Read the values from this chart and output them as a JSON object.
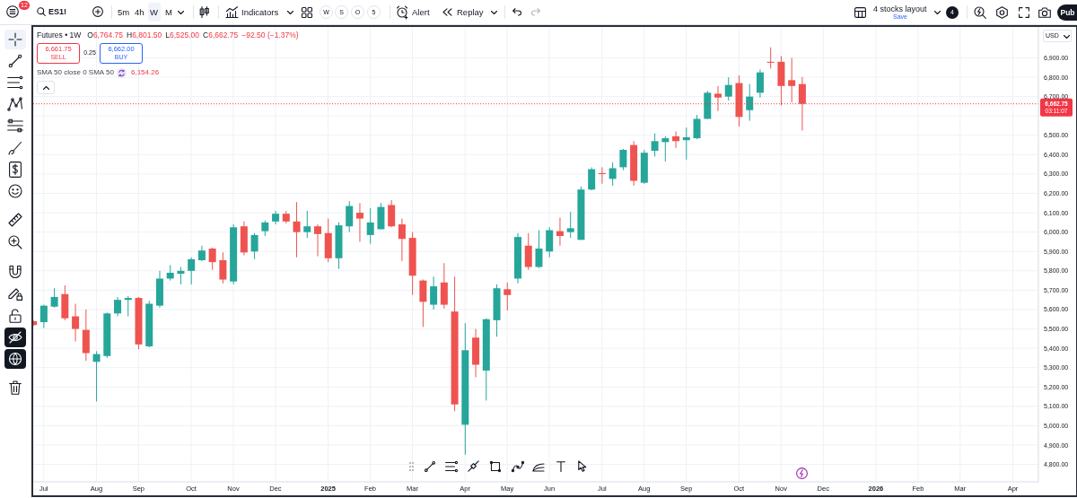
{
  "chart_data": {
    "type": "candlestick",
    "title": "Futures • 1W",
    "x": [
      "2024-06-24",
      "2024-07-01",
      "2024-07-08",
      "2024-07-15",
      "2024-07-22",
      "2024-07-29",
      "2024-08-05",
      "2024-08-12",
      "2024-08-19",
      "2024-08-26",
      "2024-09-02",
      "2024-09-09",
      "2024-09-16",
      "2024-09-23",
      "2024-09-30",
      "2024-10-07",
      "2024-10-14",
      "2024-10-21",
      "2024-10-28",
      "2024-11-04",
      "2024-11-11",
      "2024-11-18",
      "2024-11-25",
      "2024-12-02",
      "2024-12-09",
      "2024-12-16",
      "2024-12-23",
      "2024-12-30",
      "2025-01-06",
      "2025-01-13",
      "2025-01-20",
      "2025-01-27",
      "2025-02-03",
      "2025-02-10",
      "2025-02-17",
      "2025-02-24",
      "2025-03-03",
      "2025-03-10",
      "2025-03-17",
      "2025-03-24",
      "2025-03-31",
      "2025-04-07",
      "2025-04-14",
      "2025-04-21",
      "2025-04-28",
      "2025-05-05",
      "2025-05-12",
      "2025-05-19",
      "2025-05-26",
      "2025-06-02",
      "2025-06-09",
      "2025-06-16",
      "2025-06-23",
      "2025-06-30",
      "2025-07-07",
      "2025-07-14",
      "2025-07-21",
      "2025-07-28",
      "2025-08-04",
      "2025-08-11",
      "2025-08-18",
      "2025-08-25",
      "2025-09-01",
      "2025-09-08",
      "2025-09-15",
      "2025-09-22",
      "2025-09-29",
      "2025-10-06",
      "2025-10-13",
      "2025-10-20",
      "2025-10-27",
      "2025-11-03",
      "2025-11-10",
      "2025-11-17"
    ],
    "ohlc": [
      [
        5540,
        5545,
        5515,
        5520
      ],
      [
        5535,
        5625,
        5505,
        5620
      ],
      [
        5615,
        5710,
        5610,
        5665
      ],
      [
        5680,
        5725,
        5545,
        5555
      ],
      [
        5565,
        5630,
        5435,
        5500
      ],
      [
        5495,
        5600,
        5335,
        5375
      ],
      [
        5330,
        5385,
        5125,
        5370
      ],
      [
        5360,
        5585,
        5350,
        5580
      ],
      [
        5580,
        5665,
        5565,
        5650
      ],
      [
        5650,
        5670,
        5565,
        5660
      ],
      [
        5660,
        5665,
        5395,
        5420
      ],
      [
        5410,
        5645,
        5405,
        5630
      ],
      [
        5620,
        5800,
        5610,
        5760
      ],
      [
        5760,
        5830,
        5750,
        5790
      ],
      [
        5785,
        5820,
        5730,
        5800
      ],
      [
        5800,
        5870,
        5730,
        5860
      ],
      [
        5855,
        5930,
        5850,
        5905
      ],
      [
        5915,
        5920,
        5805,
        5845
      ],
      [
        5855,
        5895,
        5735,
        5755
      ],
      [
        5745,
        6040,
        5730,
        6025
      ],
      [
        6030,
        6055,
        5880,
        5895
      ],
      [
        5900,
        5995,
        5860,
        5985
      ],
      [
        6005,
        6060,
        5980,
        6050
      ],
      [
        6055,
        6110,
        6040,
        6095
      ],
      [
        6095,
        6110,
        6045,
        6055
      ],
      [
        6055,
        6155,
        5870,
        6000
      ],
      [
        6000,
        6110,
        5970,
        6030
      ],
      [
        6030,
        6040,
        5875,
        5990
      ],
      [
        5995,
        6070,
        5845,
        5865
      ],
      [
        5865,
        6050,
        5810,
        6035
      ],
      [
        6030,
        6160,
        6000,
        6135
      ],
      [
        6100,
        6150,
        5950,
        6070
      ],
      [
        5985,
        6125,
        5940,
        6050
      ],
      [
        6015,
        6150,
        6015,
        6130
      ],
      [
        6140,
        6165,
        6025,
        6030
      ],
      [
        6040,
        6070,
        5850,
        5965
      ],
      [
        5970,
        6000,
        5675,
        5775
      ],
      [
        5750,
        5755,
        5510,
        5640
      ],
      [
        5625,
        5770,
        5600,
        5720
      ],
      [
        5740,
        5840,
        5605,
        5625
      ],
      [
        5590,
        5770,
        5075,
        5110
      ],
      [
        5005,
        5530,
        4850,
        5390
      ],
      [
        5455,
        5500,
        5250,
        5315
      ],
      [
        5285,
        5555,
        5130,
        5550
      ],
      [
        5545,
        5730,
        5460,
        5710
      ],
      [
        5705,
        5740,
        5595,
        5675
      ],
      [
        5760,
        5995,
        5735,
        5975
      ],
      [
        5930,
        5995,
        5805,
        5820
      ],
      [
        5820,
        6010,
        5815,
        5915
      ],
      [
        5900,
        6025,
        5870,
        6010
      ],
      [
        6005,
        6075,
        5930,
        5980
      ],
      [
        6000,
        6105,
        5970,
        6020
      ],
      [
        5960,
        6235,
        5960,
        6220
      ],
      [
        6220,
        6335,
        6215,
        6325
      ],
      [
        6305,
        6335,
        6250,
        6300
      ],
      [
        6275,
        6360,
        6240,
        6330
      ],
      [
        6335,
        6430,
        6320,
        6425
      ],
      [
        6450,
        6470,
        6240,
        6265
      ],
      [
        6255,
        6425,
        6250,
        6410
      ],
      [
        6420,
        6510,
        6390,
        6470
      ],
      [
        6465,
        6495,
        6365,
        6485
      ],
      [
        6495,
        6520,
        6435,
        6470
      ],
      [
        6475,
        6540,
        6375,
        6490
      ],
      [
        6485,
        6605,
        6480,
        6585
      ],
      [
        6585,
        6730,
        6585,
        6720
      ],
      [
        6715,
        6755,
        6625,
        6695
      ],
      [
        6700,
        6800,
        6680,
        6760
      ],
      [
        6770,
        6810,
        6545,
        6595
      ],
      [
        6630,
        6765,
        6575,
        6700
      ],
      [
        6720,
        6840,
        6695,
        6825
      ],
      [
        6880,
        6955,
        6845,
        6875
      ],
      [
        6880,
        6910,
        6655,
        6755
      ],
      [
        6785,
        6900,
        6670,
        6755
      ],
      [
        6764.75,
        6801.5,
        6525,
        6662.75
      ]
    ],
    "colors": [
      "#ef5350",
      "#26a69a",
      "#26a69a",
      "#ef5350",
      "#ef5350",
      "#ef5350",
      "#26a69a",
      "#26a69a",
      "#26a69a",
      "#26a69a",
      "#ef5350",
      "#26a69a",
      "#26a69a",
      "#26a69a",
      "#26a69a",
      "#26a69a",
      "#26a69a",
      "#ef5350",
      "#ef5350",
      "#26a69a",
      "#ef5350",
      "#26a69a",
      "#26a69a",
      "#26a69a",
      "#ef5350",
      "#ef5350",
      "#26a69a",
      "#ef5350",
      "#ef5350",
      "#26a69a",
      "#26a69a",
      "#ef5350",
      "#26a69a",
      "#26a69a",
      "#ef5350",
      "#ef5350",
      "#ef5350",
      "#ef5350",
      "#26a69a",
      "#ef5350",
      "#ef5350",
      "#26a69a",
      "#ef5350",
      "#26a69a",
      "#26a69a",
      "#ef5350",
      "#26a69a",
      "#ef5350",
      "#26a69a",
      "#26a69a",
      "#ef5350",
      "#26a69a",
      "#26a69a",
      "#26a69a",
      "#ef5350",
      "#26a69a",
      "#26a69a",
      "#ef5350",
      "#26a69a",
      "#26a69a",
      "#26a69a",
      "#ef5350",
      "#26a69a",
      "#26a69a",
      "#26a69a",
      "#ef5350",
      "#26a69a",
      "#ef5350",
      "#26a69a",
      "#26a69a",
      "#ef5350",
      "#ef5350",
      "#ef5350",
      "#ef5350"
    ],
    "xlim": [
      "2024-06-24",
      "2026-04-23"
    ],
    "xticks": [
      {
        "value": "2024-07-01",
        "label": "Jul"
      },
      {
        "value": "2024-08-05",
        "label": "Aug"
      },
      {
        "value": "2024-09-02",
        "label": "Sep"
      },
      {
        "value": "2024-10-07",
        "label": "Oct"
      },
      {
        "value": "2024-11-04",
        "label": "Nov"
      },
      {
        "value": "2024-12-02",
        "label": "Dec"
      },
      {
        "value": "2025-01-06",
        "label": "2025"
      },
      {
        "value": "2025-02-03",
        "label": "Feb"
      },
      {
        "value": "2025-03-03",
        "label": "Mar"
      },
      {
        "value": "2025-04-07",
        "label": "Apr"
      },
      {
        "value": "2025-05-05",
        "label": "May"
      },
      {
        "value": "2025-06-02",
        "label": "Jun"
      },
      {
        "value": "2025-07-07",
        "label": "Jul"
      },
      {
        "value": "2025-08-04",
        "label": "Aug"
      },
      {
        "value": "2025-09-01",
        "label": "Sep"
      },
      {
        "value": "2025-10-06",
        "label": "Oct"
      },
      {
        "value": "2025-11-03",
        "label": "Nov"
      },
      {
        "value": "2025-12-01",
        "label": "Dec"
      },
      {
        "value": "2026-01-05",
        "label": "2026"
      },
      {
        "value": "2026-02-02",
        "label": "Feb"
      },
      {
        "value": "2026-03-02",
        "label": "Mar"
      },
      {
        "value": "2026-04-06",
        "label": "Apr"
      }
    ],
    "ylim": [
      4710,
      7060
    ],
    "yticks": [
      {
        "value": 4800,
        "label": "4,800.00"
      },
      {
        "value": 4900,
        "label": "4,900.00"
      },
      {
        "value": 5000,
        "label": "5,000.00"
      },
      {
        "value": 5100,
        "label": "5,100.00"
      },
      {
        "value": 5200,
        "label": "5,200.00"
      },
      {
        "value": 5300,
        "label": "5,300.00"
      },
      {
        "value": 5400,
        "label": "5,400.00"
      },
      {
        "value": 5500,
        "label": "5,500.00"
      },
      {
        "value": 5600,
        "label": "5,600.00"
      },
      {
        "value": 5700,
        "label": "5,700.00"
      },
      {
        "value": 5800,
        "label": "5,800.00"
      },
      {
        "value": 5900,
        "label": "5,900.00"
      },
      {
        "value": 6000,
        "label": "6,000.00"
      },
      {
        "value": 6100,
        "label": "6,100.00"
      },
      {
        "value": 6200,
        "label": "6,200.00"
      },
      {
        "value": 6300,
        "label": "6,300.00"
      },
      {
        "value": 6400,
        "label": "6,400.00"
      },
      {
        "value": 6500,
        "label": "6,500.00"
      },
      {
        "value": 6600,
        "label": null
      },
      {
        "value": 6700,
        "label": "6,700.00"
      },
      {
        "value": 6800,
        "label": "6,800.00"
      },
      {
        "value": 6900,
        "label": "6,900.00"
      }
    ],
    "grid": true,
    "ref_lines": [
      {
        "axis": "y",
        "value": 6662.75,
        "label": "6,662.75",
        "color": "#f23645",
        "line_style": "dotted"
      }
    ],
    "annotations": [
      "12",
      "ES1!",
      "5m",
      "4h",
      "W",
      "M",
      "Indicators",
      "W",
      "S",
      "O",
      "5",
      "Alert",
      "Replay",
      "4 stocks layout",
      "Save",
      "4",
      "Pub",
      "O",
      "6,764.75",
      "H",
      "6,801.50",
      "L",
      "6,525.00",
      "C",
      "6,662.75",
      "−92.50 (−1.37%)",
      "6,661.75",
      "SELL",
      "0.25",
      "6,662.00",
      "BUY",
      "SMA 50 close 0 SMA 50",
      "6,154.26",
      "USD",
      "03:11:07"
    ]
  }
}
